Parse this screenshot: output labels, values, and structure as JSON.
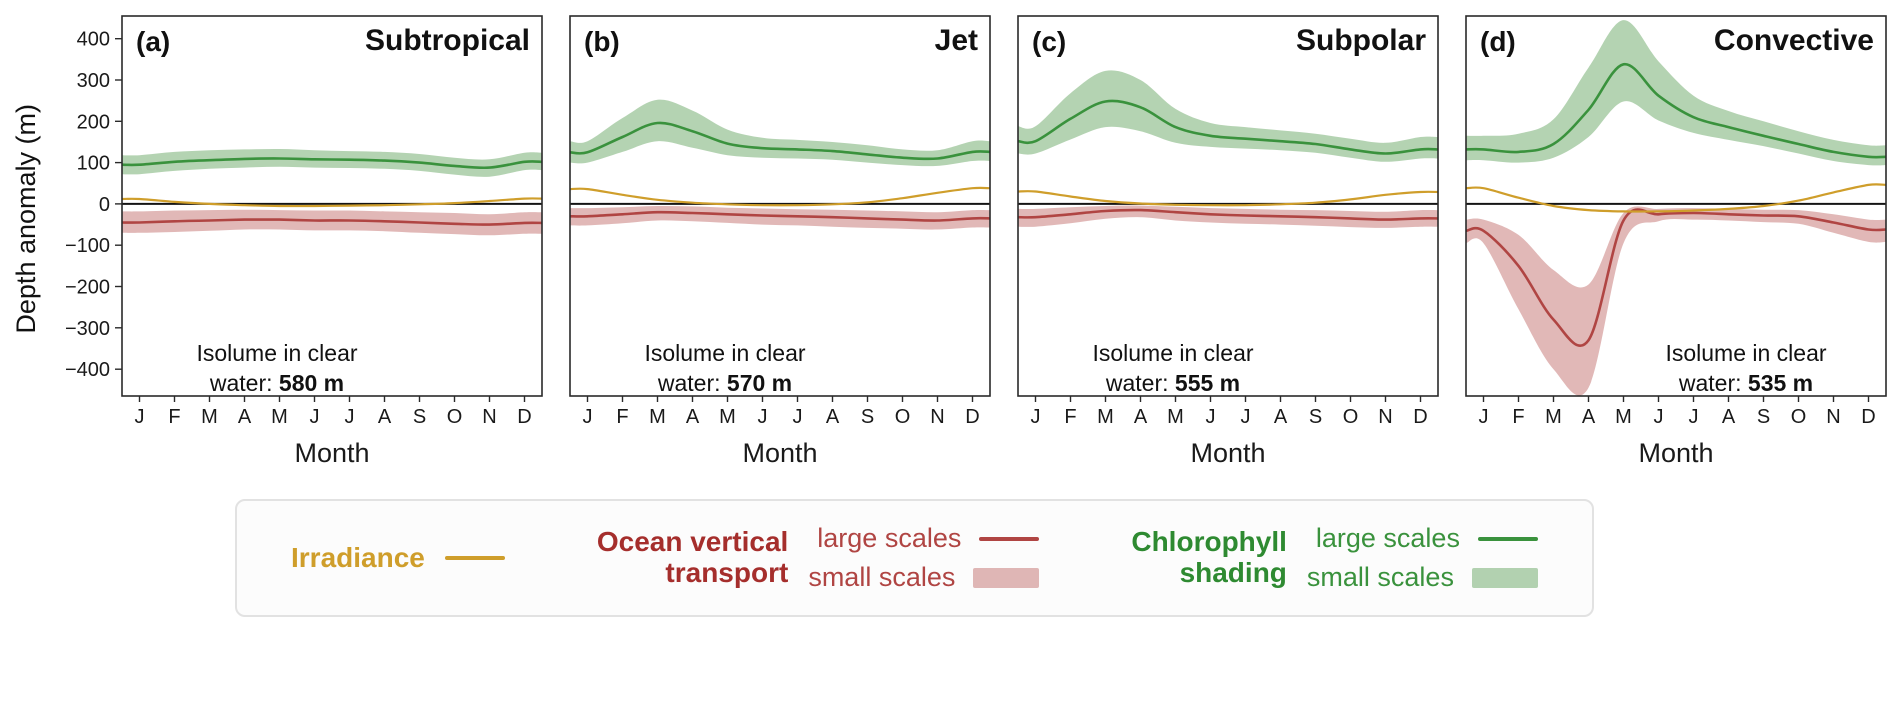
{
  "figure": {
    "y_axis_label": "Depth anomaly (m)",
    "x_axis_label": "Month",
    "y_ticks": [
      400,
      300,
      200,
      100,
      0,
      -100,
      -200,
      -300,
      -400
    ]
  },
  "colors": {
    "irradiance": "#cf9e2b",
    "transport": "#b04543",
    "transport_band": "rgba(176,69,67,0.38)",
    "transport_title": "#a52e2c",
    "chlorophyll": "#3a923d",
    "chl_band": "rgba(88,158,84,0.45)",
    "chl_title": "#2e8a31",
    "zero_line": "#141414",
    "axis": "#2a2a2a"
  },
  "legend": {
    "irradiance_label": "Irradiance",
    "transport_line1": "Ocean vertical",
    "transport_line2": "transport",
    "chl_line1": "Chlorophyll",
    "chl_line2": "shading",
    "large_scales_label": "large scales",
    "small_scales_label": "small scales"
  },
  "chart_data": [
    {
      "type": "line",
      "panel": "(a)",
      "title": "Subtropical",
      "x_months": [
        "J",
        "F",
        "M",
        "A",
        "M",
        "J",
        "J",
        "A",
        "S",
        "O",
        "N",
        "D"
      ],
      "ylim": [
        -465,
        455
      ],
      "annotation": {
        "line1": "Isolume in clear",
        "line2_prefix": "water: ",
        "value": "580 m",
        "align": "left"
      },
      "series": {
        "irradiance": [
          12,
          5,
          0,
          -3,
          -5,
          -5,
          -4,
          -3,
          -1,
          2,
          7,
          13
        ],
        "transport_mean": [
          -45,
          -42,
          -40,
          -38,
          -38,
          -40,
          -40,
          -42,
          -45,
          -48,
          -50,
          -46
        ],
        "transport_upper": [
          -18,
          -16,
          -15,
          -14,
          -15,
          -16,
          -16,
          -18,
          -20,
          -22,
          -25,
          -20
        ],
        "transport_lower": [
          -70,
          -68,
          -65,
          -62,
          -62,
          -64,
          -64,
          -66,
          -70,
          -73,
          -76,
          -72
        ],
        "chl_mean": [
          95,
          102,
          106,
          109,
          110,
          108,
          107,
          105,
          100,
          92,
          88,
          102
        ],
        "chl_upper": [
          118,
          126,
          130,
          132,
          133,
          130,
          128,
          126,
          121,
          112,
          108,
          124
        ],
        "chl_lower": [
          72,
          80,
          85,
          88,
          90,
          88,
          87,
          85,
          80,
          71,
          66,
          82
        ]
      }
    },
    {
      "type": "line",
      "panel": "(b)",
      "title": "Jet",
      "x_months": [
        "J",
        "F",
        "M",
        "A",
        "M",
        "J",
        "J",
        "A",
        "S",
        "O",
        "N",
        "D"
      ],
      "ylim": [
        -465,
        455
      ],
      "annotation": {
        "line1": "Isolume in clear",
        "line2_prefix": "water: ",
        "value": "570 m",
        "align": "left"
      },
      "series": {
        "irradiance": [
          36,
          22,
          10,
          3,
          -1,
          -3,
          -3,
          -1,
          4,
          14,
          27,
          38
        ],
        "transport_mean": [
          -30,
          -25,
          -20,
          -22,
          -25,
          -28,
          -30,
          -32,
          -35,
          -38,
          -40,
          -35
        ],
        "transport_upper": [
          -10,
          -8,
          -5,
          -6,
          -9,
          -11,
          -13,
          -14,
          -16,
          -18,
          -20,
          -15
        ],
        "transport_lower": [
          -52,
          -47,
          -40,
          -42,
          -46,
          -50,
          -52,
          -55,
          -58,
          -60,
          -62,
          -57
        ],
        "chl_mean": [
          125,
          162,
          196,
          176,
          146,
          135,
          132,
          128,
          120,
          112,
          110,
          126
        ],
        "chl_upper": [
          152,
          208,
          252,
          226,
          180,
          160,
          155,
          150,
          142,
          132,
          130,
          152
        ],
        "chl_lower": [
          100,
          126,
          152,
          136,
          118,
          112,
          110,
          107,
          100,
          94,
          92,
          104
        ]
      }
    },
    {
      "type": "line",
      "panel": "(c)",
      "title": "Subpolar",
      "x_months": [
        "J",
        "F",
        "M",
        "A",
        "M",
        "J",
        "J",
        "A",
        "S",
        "O",
        "N",
        "D"
      ],
      "ylim": [
        -465,
        455
      ],
      "annotation": {
        "line1": "Isolume in clear",
        "line2_prefix": "water: ",
        "value": "555 m",
        "align": "left"
      },
      "series": {
        "irradiance": [
          30,
          18,
          7,
          1,
          -2,
          -3,
          -3,
          -1,
          3,
          11,
          22,
          29
        ],
        "transport_mean": [
          -32,
          -25,
          -17,
          -15,
          -20,
          -25,
          -28,
          -30,
          -32,
          -35,
          -38,
          -35
        ],
        "transport_upper": [
          -12,
          -8,
          -5,
          -4,
          -7,
          -10,
          -12,
          -14,
          -15,
          -17,
          -19,
          -15
        ],
        "transport_lower": [
          -55,
          -47,
          -36,
          -32,
          -40,
          -45,
          -48,
          -50,
          -53,
          -56,
          -58,
          -55
        ],
        "chl_mean": [
          152,
          206,
          248,
          234,
          186,
          165,
          158,
          152,
          145,
          132,
          122,
          132
        ],
        "chl_upper": [
          188,
          268,
          322,
          300,
          230,
          196,
          186,
          178,
          170,
          158,
          148,
          162
        ],
        "chl_lower": [
          122,
          156,
          186,
          176,
          148,
          138,
          134,
          130,
          124,
          112,
          102,
          110
        ]
      }
    },
    {
      "type": "line",
      "panel": "(d)",
      "title": "Convective",
      "x_months": [
        "J",
        "F",
        "M",
        "A",
        "M",
        "J",
        "J",
        "A",
        "S",
        "O",
        "N",
        "D"
      ],
      "ylim": [
        -465,
        455
      ],
      "annotation": {
        "line1": "Isolume in clear",
        "line2_prefix": "water: ",
        "value": "535 m",
        "align": "right"
      },
      "series": {
        "irradiance": [
          38,
          15,
          -5,
          -15,
          -18,
          -18,
          -16,
          -12,
          -5,
          8,
          28,
          46
        ],
        "transport_mean": [
          -65,
          -150,
          -280,
          -330,
          -40,
          -25,
          -22,
          -25,
          -28,
          -30,
          -45,
          -62
        ],
        "transport_upper": [
          -38,
          -75,
          -160,
          -195,
          -22,
          -12,
          -10,
          -12,
          -14,
          -15,
          -25,
          -38
        ],
        "transport_lower": [
          -95,
          -255,
          -400,
          -445,
          -95,
          -42,
          -38,
          -40,
          -44,
          -48,
          -70,
          -92
        ],
        "chl_mean": [
          132,
          126,
          145,
          228,
          338,
          262,
          210,
          186,
          165,
          145,
          126,
          114
        ],
        "chl_upper": [
          165,
          170,
          205,
          330,
          445,
          345,
          262,
          225,
          200,
          176,
          155,
          142
        ],
        "chl_lower": [
          106,
          100,
          112,
          162,
          248,
          202,
          172,
          155,
          140,
          122,
          104,
          94
        ]
      }
    }
  ]
}
